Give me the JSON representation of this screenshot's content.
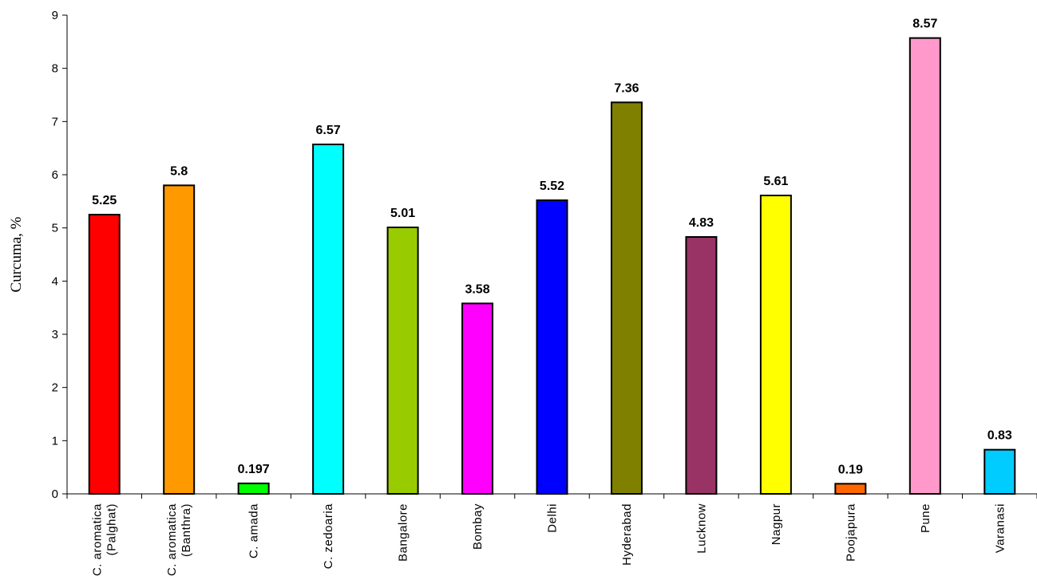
{
  "chart_data": {
    "type": "bar",
    "ylabel": "Curcuma, %",
    "xlabel": "",
    "ylim": [
      0,
      9
    ],
    "yticks": [
      0,
      1,
      2,
      3,
      4,
      5,
      6,
      7,
      8,
      9
    ],
    "grid": false,
    "categories": [
      [
        "C. aromatica",
        "(Palghat)"
      ],
      [
        "C. aromatica",
        "(Banthra)"
      ],
      [
        "C. amada"
      ],
      [
        "C. zedoaria"
      ],
      [
        "Bangalore"
      ],
      [
        "Bombay"
      ],
      [
        "Delhi"
      ],
      [
        "Hyderabad"
      ],
      [
        "Lucknow"
      ],
      [
        "Nagpur"
      ],
      [
        "Poojapura"
      ],
      [
        "Pune"
      ],
      [
        "Varanasi"
      ]
    ],
    "values": [
      5.25,
      5.8,
      0.197,
      6.57,
      5.01,
      3.58,
      5.52,
      7.36,
      4.83,
      5.61,
      0.19,
      8.57,
      0.83
    ],
    "data_labels": [
      "5.25",
      "5.8",
      "0.197",
      "6.57",
      "5.01",
      "3.58",
      "5.52",
      "7.36",
      "4.83",
      "5.61",
      "0.19",
      "8.57",
      "0.83"
    ],
    "colors": [
      "#ff0000",
      "#ff9900",
      "#00ff00",
      "#00ffff",
      "#99cc00",
      "#ff00ff",
      "#0000ff",
      "#808000",
      "#993366",
      "#ffff00",
      "#ff6600",
      "#ff99cc",
      "#00ccff"
    ]
  }
}
